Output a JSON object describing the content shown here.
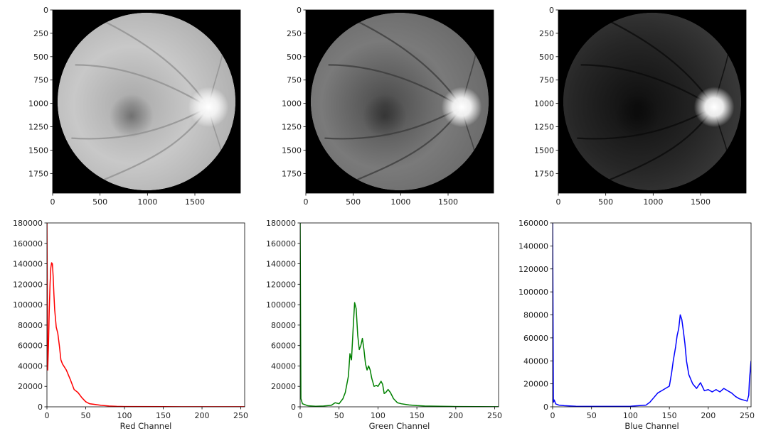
{
  "chart_data": [
    {
      "type": "image",
      "channel": "red",
      "xticks": [
        "0",
        "500",
        "1000",
        "1500"
      ],
      "yticks": [
        "0",
        "250",
        "500",
        "750",
        "1000",
        "1250",
        "1500",
        "1750"
      ],
      "xlim": [
        0,
        1980
      ],
      "ylim": [
        1960,
        0
      ]
    },
    {
      "type": "image",
      "channel": "green",
      "xticks": [
        "0",
        "500",
        "1000",
        "1500"
      ],
      "yticks": [
        "0",
        "250",
        "500",
        "750",
        "1000",
        "1250",
        "1500",
        "1750"
      ],
      "xlim": [
        0,
        1980
      ],
      "ylim": [
        1960,
        0
      ]
    },
    {
      "type": "image",
      "channel": "blue",
      "xticks": [
        "0",
        "500",
        "1000",
        "1500"
      ],
      "yticks": [
        "0",
        "250",
        "500",
        "750",
        "1000",
        "1250",
        "1500",
        "1750"
      ],
      "xlim": [
        0,
        1980
      ],
      "ylim": [
        1960,
        0
      ]
    },
    {
      "type": "line",
      "xlabel": "Red Channel",
      "color": "#ff0000",
      "xlim": [
        0,
        255
      ],
      "ylim": [
        0,
        180000
      ],
      "xticks": [
        "0",
        "50",
        "100",
        "150",
        "200",
        "250"
      ],
      "yticks": [
        "0",
        "20000",
        "40000",
        "60000",
        "80000",
        "100000",
        "120000",
        "140000",
        "160000",
        "180000"
      ],
      "x": [
        0,
        1,
        2,
        3,
        4,
        5,
        6,
        7,
        8,
        9,
        10,
        12,
        14,
        16,
        18,
        20,
        25,
        30,
        35,
        40,
        45,
        50,
        55,
        60,
        70,
        80,
        90,
        100,
        150,
        200,
        255
      ],
      "values": [
        180000,
        36000,
        60000,
        95000,
        120000,
        136000,
        141000,
        140000,
        128000,
        110000,
        95000,
        78000,
        72000,
        60000,
        46000,
        42000,
        36000,
        27000,
        17000,
        14000,
        9000,
        5000,
        3000,
        2500,
        1500,
        800,
        400,
        300,
        150,
        100,
        50
      ]
    },
    {
      "type": "line",
      "xlabel": "Green Channel",
      "color": "#008000",
      "xlim": [
        0,
        255
      ],
      "ylim": [
        0,
        180000
      ],
      "xticks": [
        "0",
        "50",
        "100",
        "150",
        "200",
        "250"
      ],
      "yticks": [
        "0",
        "20000",
        "40000",
        "60000",
        "80000",
        "100000",
        "120000",
        "140000",
        "160000",
        "180000"
      ],
      "x": [
        0,
        1,
        3,
        10,
        20,
        30,
        40,
        45,
        50,
        55,
        58,
        62,
        64,
        66,
        68,
        70,
        72,
        74,
        76,
        78,
        80,
        82,
        84,
        86,
        88,
        90,
        92,
        95,
        98,
        100,
        104,
        106,
        108,
        110,
        113,
        116,
        120,
        125,
        130,
        140,
        150,
        160,
        180,
        200,
        255
      ],
      "values": [
        180000,
        8000,
        3000,
        1000,
        500,
        800,
        1500,
        4000,
        3000,
        8000,
        14000,
        30000,
        52000,
        46000,
        75000,
        102000,
        96000,
        70000,
        56000,
        60000,
        67000,
        56000,
        42000,
        36000,
        40000,
        36000,
        28000,
        20000,
        21000,
        20000,
        25000,
        22000,
        13000,
        14000,
        17000,
        14000,
        8000,
        4000,
        3000,
        1800,
        1200,
        800,
        500,
        300,
        100
      ]
    },
    {
      "type": "line",
      "xlabel": "Blue Channel",
      "color": "#0000ff",
      "xlim": [
        0,
        255
      ],
      "ylim": [
        0,
        160000
      ],
      "xticks": [
        "0",
        "50",
        "100",
        "150",
        "200",
        "250"
      ],
      "yticks": [
        "0",
        "20000",
        "40000",
        "60000",
        "80000",
        "100000",
        "120000",
        "140000",
        "160000"
      ],
      "x": [
        0,
        1,
        2,
        4,
        8,
        15,
        30,
        60,
        100,
        120,
        125,
        130,
        135,
        140,
        145,
        150,
        153,
        155,
        158,
        160,
        162,
        164,
        166,
        168,
        170,
        172,
        175,
        180,
        185,
        190,
        195,
        200,
        205,
        210,
        215,
        220,
        225,
        230,
        235,
        240,
        245,
        250,
        252,
        253,
        254,
        255
      ],
      "values": [
        160000,
        4000,
        6000,
        2500,
        1500,
        1000,
        500,
        400,
        500,
        1500,
        4000,
        8000,
        12000,
        14000,
        16000,
        18000,
        30000,
        40000,
        52000,
        62000,
        68000,
        80000,
        76000,
        66000,
        55000,
        40000,
        28000,
        20000,
        16000,
        21000,
        14000,
        15000,
        13000,
        15000,
        13000,
        16000,
        14000,
        12000,
        9000,
        7000,
        6000,
        5000,
        10000,
        24000,
        32000,
        40000
      ]
    }
  ]
}
